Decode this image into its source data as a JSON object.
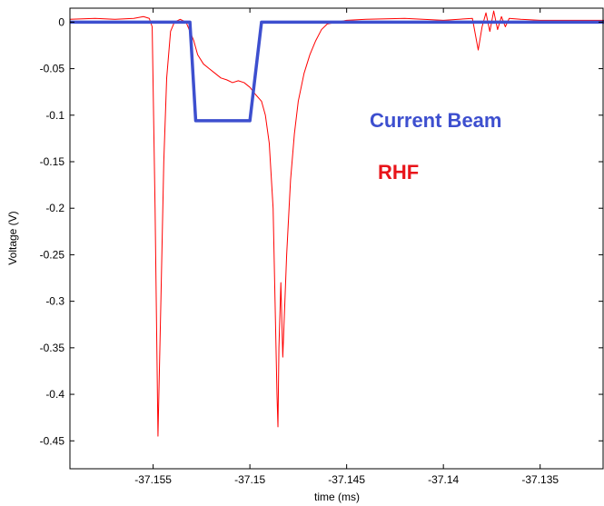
{
  "chart_data": {
    "type": "line",
    "title": "",
    "xlabel": "time (ms)",
    "ylabel": "Voltage (V)",
    "xlim": [
      -37.1593,
      -37.1317
    ],
    "ylim": [
      -0.48,
      0.015
    ],
    "xticks": [
      -37.155,
      -37.15,
      -37.145,
      -37.14,
      -37.135
    ],
    "xtick_labels": [
      "-37.155",
      "-37.15",
      "-37.145",
      "-37.14",
      "-37.135"
    ],
    "yticks": [
      0,
      -0.05,
      -0.1,
      -0.15,
      -0.2,
      -0.25,
      -0.3,
      -0.35,
      -0.4,
      -0.45
    ],
    "ytick_labels": [
      "0",
      "-0.05",
      "-0.1",
      "-0.15",
      "-0.2",
      "-0.25",
      "-0.3",
      "-0.35",
      "-0.4",
      "-0.45"
    ],
    "grid": false,
    "annotations": [
      {
        "text": "Current Beam",
        "color": "#3d4fcf"
      },
      {
        "text": "RHF",
        "color": "#e8141a"
      }
    ],
    "series": [
      {
        "color": "#ff0000",
        "x": [
          -37.1593,
          -37.158,
          -37.157,
          -37.156,
          -37.1555,
          -37.1552,
          -37.15505,
          -37.1549,
          -37.15475,
          -37.1546,
          -37.15445,
          -37.1543,
          -37.1541,
          -37.1539,
          -37.1536,
          -37.1533,
          -37.1531,
          -37.1529,
          -37.1527,
          -37.1524,
          -37.1521,
          -37.1518,
          -37.1515,
          -37.1512,
          -37.1509,
          -37.1506,
          -37.1503,
          -37.15,
          -37.1497,
          -37.1494,
          -37.1492,
          -37.149,
          -37.1488,
          -37.1487,
          -37.1486,
          -37.14855,
          -37.1485,
          -37.1484,
          -37.1483,
          -37.1481,
          -37.1479,
          -37.1477,
          -37.1475,
          -37.1472,
          -37.1469,
          -37.1466,
          -37.1463,
          -37.146,
          -37.1455,
          -37.145,
          -37.144,
          -37.142,
          -37.14,
          -37.1385,
          -37.1382,
          -37.138,
          -37.1378,
          -37.1376,
          -37.1374,
          -37.1372,
          -37.137,
          -37.1368,
          -37.1366,
          -37.136,
          -37.135,
          -37.1317
        ],
        "y": [
          0.003,
          0.004,
          0.003,
          0.004,
          0.006,
          0.004,
          -0.005,
          -0.2,
          -0.445,
          -0.3,
          -0.15,
          -0.06,
          -0.01,
          0.0,
          0.003,
          0.0,
          -0.01,
          -0.02,
          -0.035,
          -0.045,
          -0.05,
          -0.055,
          -0.06,
          -0.062,
          -0.065,
          -0.063,
          -0.065,
          -0.07,
          -0.078,
          -0.085,
          -0.1,
          -0.13,
          -0.2,
          -0.3,
          -0.4,
          -0.435,
          -0.35,
          -0.28,
          -0.36,
          -0.25,
          -0.17,
          -0.12,
          -0.085,
          -0.055,
          -0.035,
          -0.02,
          -0.008,
          -0.002,
          0.0,
          0.002,
          0.003,
          0.004,
          0.002,
          0.004,
          -0.03,
          -0.005,
          0.01,
          -0.01,
          0.012,
          -0.008,
          0.006,
          -0.005,
          0.004,
          0.003,
          0.002,
          0.002
        ]
      },
      {
        "color": "#3d4fcf",
        "x": [
          -37.1593,
          -37.1531,
          -37.1528,
          -37.15,
          -37.1494,
          -37.1317
        ],
        "y": [
          0.0,
          0.0,
          -0.106,
          -0.106,
          0.0,
          0.0
        ]
      }
    ]
  }
}
